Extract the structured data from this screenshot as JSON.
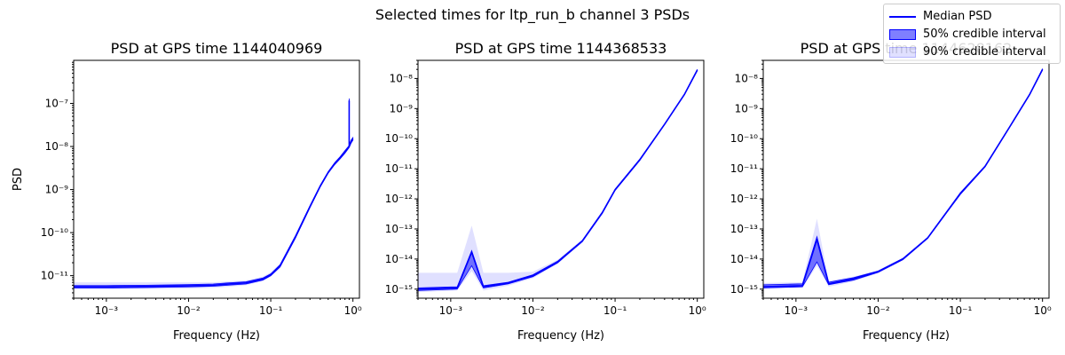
{
  "figure": {
    "suptitle": "Selected times for ltp_run_b channel 3 PSDs"
  },
  "legend": {
    "entries": [
      {
        "label": "Median PSD",
        "kind": "line",
        "color": "#0000ff"
      },
      {
        "label": "50% credible interval",
        "kind": "band",
        "color": "#0000ff",
        "opacity": 0.5
      },
      {
        "label": "90% credible interval",
        "kind": "band",
        "color": "#0000ff",
        "opacity": 0.12
      }
    ]
  },
  "colors": {
    "median": "#0000ff",
    "band50": "rgba(0,0,255,0.5)",
    "band90": "rgba(0,0,255,0.12)"
  },
  "chart_data": [
    {
      "type": "line",
      "title": "PSD at GPS time 1144040969",
      "xlabel": "Frequency (Hz)",
      "ylabel": "PSD",
      "xscale": "log",
      "yscale": "log",
      "xlim": [
        0.0004,
        1.2
      ],
      "ylim": [
        3e-12,
        1e-06
      ],
      "xticks": [
        {
          "v": 0.001,
          "label": "10⁻³"
        },
        {
          "v": 0.01,
          "label": "10⁻²"
        },
        {
          "v": 0.1,
          "label": "10⁻¹"
        },
        {
          "v": 1,
          "label": "10⁰"
        }
      ],
      "yticks": [
        {
          "v": 1e-11,
          "label": "10⁻¹¹"
        },
        {
          "v": 1e-10,
          "label": "10⁻¹⁰"
        },
        {
          "v": 1e-09,
          "label": "10⁻⁹"
        },
        {
          "v": 1e-08,
          "label": "10⁻⁸"
        },
        {
          "v": 1e-07,
          "label": "10⁻⁷"
        }
      ],
      "series": [
        {
          "name": "Median PSD",
          "x": [
            0.0004,
            0.001,
            0.003,
            0.01,
            0.02,
            0.03,
            0.05,
            0.08,
            0.1,
            0.13,
            0.2,
            0.3,
            0.4,
            0.5,
            0.6,
            0.7,
            0.8,
            0.9,
            0.9,
            0.9,
            0.95,
            1.0
          ],
          "median": [
            5.5e-12,
            5.5e-12,
            5.6e-12,
            5.8e-12,
            6e-12,
            6.4e-12,
            6.8e-12,
            8.3e-12,
            1.05e-11,
            1.7e-11,
            8e-11,
            4e-10,
            1.2e-09,
            2.5e-09,
            4e-09,
            5.5e-09,
            7.5e-09,
            1e-08,
            1.15e-07,
            1e-08,
            1.3e-08,
            1.5e-08
          ],
          "lo50": [
            5.2e-12,
            5.2e-12,
            5.3e-12,
            5.5e-12,
            5.7e-12,
            6e-12,
            6.4e-12,
            7.9e-12,
            1e-11,
            1.6e-11,
            7.5e-11,
            3.8e-10,
            1.15e-09,
            2.4e-09,
            3.8e-09,
            5.2e-09,
            7e-09,
            9.5e-09,
            9.5e-09,
            9.5e-09,
            1.2e-08,
            1.4e-08
          ],
          "hi50": [
            5.9e-12,
            5.9e-12,
            6e-12,
            6.2e-12,
            6.4e-12,
            6.8e-12,
            7.2e-12,
            8.8e-12,
            1.1e-11,
            1.8e-11,
            8.5e-11,
            4.2e-10,
            1.25e-09,
            2.6e-09,
            4.2e-09,
            5.8e-09,
            8e-09,
            1.05e-08,
            1.3e-07,
            1.05e-08,
            1.4e-08,
            1.6e-08
          ],
          "lo90": [
            4.8e-12,
            4.8e-12,
            4.9e-12,
            5e-12,
            5.2e-12,
            5.5e-12,
            6e-12,
            7.5e-12,
            9.5e-12,
            1.5e-11,
            7e-11,
            3.6e-10,
            1.1e-09,
            2.3e-09,
            3.6e-09,
            5e-09,
            6.8e-09,
            9e-09,
            9e-09,
            9e-09,
            1.15e-08,
            1.35e-08
          ],
          "hi90": [
            7e-12,
            7e-12,
            7e-12,
            7e-12,
            7e-12,
            7.4e-12,
            7.8e-12,
            9.5e-12,
            1.2e-11,
            1.9e-11,
            9e-11,
            4.4e-10,
            1.3e-09,
            2.7e-09,
            4.4e-09,
            6e-09,
            8.5e-09,
            1.1e-08,
            5e-07,
            1.1e-08,
            1.5e-08,
            1.7e-08
          ]
        }
      ]
    },
    {
      "type": "line",
      "title": "PSD at GPS time 1144368533",
      "xlabel": "Frequency (Hz)",
      "ylabel": "",
      "xscale": "log",
      "yscale": "log",
      "xlim": [
        0.0004,
        1.2
      ],
      "ylim": [
        5e-16,
        4e-08
      ],
      "xticks": [
        {
          "v": 0.001,
          "label": "10⁻³"
        },
        {
          "v": 0.01,
          "label": "10⁻²"
        },
        {
          "v": 0.1,
          "label": "10⁻¹"
        },
        {
          "v": 1,
          "label": "10⁰"
        }
      ],
      "yticks": [
        {
          "v": 1e-15,
          "label": "10⁻¹⁵"
        },
        {
          "v": 1e-14,
          "label": "10⁻¹⁴"
        },
        {
          "v": 1e-13,
          "label": "10⁻¹³"
        },
        {
          "v": 1e-12,
          "label": "10⁻¹²"
        },
        {
          "v": 1e-11,
          "label": "10⁻¹¹"
        },
        {
          "v": 1e-10,
          "label": "10⁻¹⁰"
        },
        {
          "v": 1e-09,
          "label": "10⁻⁹"
        },
        {
          "v": 1e-08,
          "label": "10⁻⁸"
        }
      ],
      "series": [
        {
          "name": "Median PSD",
          "x": [
            0.0004,
            0.0012,
            0.0018,
            0.0025,
            0.005,
            0.01,
            0.02,
            0.04,
            0.07,
            0.1,
            0.2,
            0.4,
            0.7,
            1.0
          ],
          "median": [
            1e-15,
            1.1e-15,
            1.7e-14,
            1.2e-15,
            1.6e-15,
            2.8e-15,
            8e-15,
            4e-14,
            3.5e-13,
            2e-12,
            2e-11,
            3e-10,
            3e-09,
            1.9e-08
          ],
          "lo50": [
            9e-16,
            1e-15,
            6e-15,
            1.1e-15,
            1.5e-15,
            2.6e-15,
            7.5e-15,
            3.8e-14,
            3.3e-13,
            1.9e-12,
            1.9e-11,
            2.9e-10,
            2.9e-09,
            1.8e-08
          ],
          "hi50": [
            1.1e-15,
            1.2e-15,
            1.9e-14,
            1.3e-15,
            1.7e-15,
            3e-15,
            8.5e-15,
            4.2e-14,
            3.7e-13,
            2.1e-12,
            2.1e-11,
            3.1e-10,
            3.1e-09,
            2e-08
          ],
          "lo90": [
            8e-16,
            9e-16,
            4e-15,
            9e-16,
            1.3e-15,
            2.3e-15,
            7e-15,
            3.5e-14,
            3.1e-13,
            1.8e-12,
            1.8e-11,
            2.8e-10,
            2.8e-09,
            1.7e-08
          ],
          "hi90": [
            3.5e-15,
            3.5e-15,
            1.3e-13,
            3.5e-15,
            3.5e-15,
            3.8e-15,
            9.5e-15,
            4.5e-14,
            3.9e-13,
            2.2e-12,
            2.2e-11,
            3.2e-10,
            3.2e-09,
            2.1e-08
          ]
        }
      ]
    },
    {
      "type": "line",
      "title": "PSD at GPS time 1144628162",
      "xlabel": "Frequency (Hz)",
      "ylabel": "",
      "xscale": "log",
      "yscale": "log",
      "xlim": [
        0.0004,
        1.2
      ],
      "ylim": [
        5e-16,
        4e-08
      ],
      "xticks": [
        {
          "v": 0.001,
          "label": "10⁻³"
        },
        {
          "v": 0.01,
          "label": "10⁻²"
        },
        {
          "v": 0.1,
          "label": "10⁻¹"
        },
        {
          "v": 1,
          "label": "10⁰"
        }
      ],
      "yticks": [
        {
          "v": 1e-15,
          "label": "10⁻¹⁵"
        },
        {
          "v": 1e-14,
          "label": "10⁻¹⁴"
        },
        {
          "v": 1e-13,
          "label": "10⁻¹³"
        },
        {
          "v": 1e-12,
          "label": "10⁻¹²"
        },
        {
          "v": 1e-11,
          "label": "10⁻¹¹"
        },
        {
          "v": 1e-10,
          "label": "10⁻¹⁰"
        },
        {
          "v": 1e-09,
          "label": "10⁻⁹"
        },
        {
          "v": 1e-08,
          "label": "10⁻⁸"
        }
      ],
      "series": [
        {
          "name": "Median PSD",
          "x": [
            0.0004,
            0.0012,
            0.0018,
            0.0025,
            0.005,
            0.01,
            0.02,
            0.04,
            0.07,
            0.1,
            0.2,
            0.4,
            0.7,
            1.0
          ],
          "median": [
            1.2e-15,
            1.3e-15,
            4.5e-14,
            1.5e-15,
            2.2e-15,
            3.8e-15,
            1e-14,
            5e-14,
            4e-13,
            1.5e-12,
            1.2e-11,
            2.5e-10,
            3e-09,
            2e-08
          ],
          "lo50": [
            1.1e-15,
            1.2e-15,
            8e-15,
            1.4e-15,
            2e-15,
            3.6e-15,
            9.5e-15,
            4.8e-14,
            3.8e-13,
            1.4e-12,
            1.15e-11,
            2.4e-10,
            2.9e-09,
            1.9e-08
          ],
          "hi50": [
            1.4e-15,
            1.5e-15,
            5.5e-14,
            1.7e-15,
            2.4e-15,
            4e-15,
            1.05e-14,
            5.2e-14,
            4.2e-13,
            1.6e-12,
            1.25e-11,
            2.6e-10,
            3.1e-09,
            2.1e-08
          ],
          "lo90": [
            1e-15,
            1.1e-15,
            6e-15,
            1.2e-15,
            1.8e-15,
            3.4e-15,
            9e-15,
            4.6e-14,
            3.6e-13,
            1.35e-12,
            1.1e-11,
            2.3e-10,
            2.8e-09,
            1.8e-08
          ],
          "hi90": [
            1.6e-15,
            1.7e-15,
            2.2e-13,
            1.9e-15,
            2.6e-15,
            4.2e-15,
            1.1e-14,
            5.4e-14,
            4.4e-13,
            1.65e-12,
            1.3e-11,
            2.7e-10,
            3.2e-09,
            2.2e-08
          ]
        }
      ]
    }
  ]
}
